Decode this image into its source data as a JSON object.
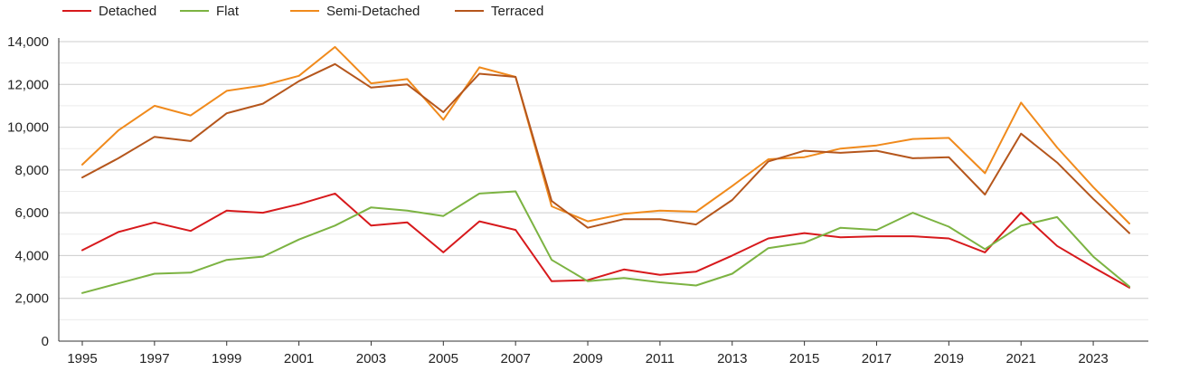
{
  "chart_data": {
    "type": "line",
    "title": "",
    "xlabel": "",
    "ylabel": "",
    "x": [
      1995,
      1996,
      1997,
      1998,
      1999,
      2000,
      2001,
      2002,
      2003,
      2004,
      2005,
      2006,
      2007,
      2008,
      2009,
      2010,
      2011,
      2012,
      2013,
      2014,
      2015,
      2016,
      2017,
      2018,
      2019,
      2020,
      2021,
      2022,
      2023,
      2024
    ],
    "xticks": [
      "1995",
      "1997",
      "1999",
      "2001",
      "2003",
      "2005",
      "2007",
      "2009",
      "2011",
      "2013",
      "2015",
      "2017",
      "2019",
      "2021",
      "2023"
    ],
    "xlim": [
      1995,
      2024
    ],
    "ylim": [
      0,
      14000
    ],
    "yticks": [
      "0",
      "2,000",
      "4,000",
      "6,000",
      "8,000",
      "10,000",
      "12,000",
      "14,000"
    ],
    "grid": true,
    "legend_position": "top-left",
    "series": [
      {
        "name": "Detached",
        "color": "#d7191c",
        "values": [
          4250,
          5100,
          5550,
          5150,
          6100,
          6000,
          6400,
          6900,
          5400,
          5550,
          4150,
          5600,
          5200,
          2800,
          2850,
          3350,
          3100,
          3250,
          4000,
          4800,
          5050,
          4850,
          4900,
          4900,
          4800,
          4150,
          6000,
          4450,
          3450,
          2500
        ]
      },
      {
        "name": "Flat",
        "color": "#7cb342",
        "values": [
          2250,
          2700,
          3150,
          3200,
          3800,
          3950,
          4750,
          5400,
          6250,
          6100,
          5850,
          6900,
          7000,
          3800,
          2800,
          2950,
          2750,
          2600,
          3150,
          4350,
          4600,
          5300,
          5200,
          6000,
          5350,
          4300,
          5400,
          5800,
          3950,
          2550
        ]
      },
      {
        "name": "Semi-Detached",
        "color": "#f08a1c",
        "values": [
          8250,
          9850,
          11000,
          10550,
          11700,
          11950,
          12400,
          13750,
          12050,
          12250,
          10350,
          12800,
          12350,
          6300,
          5600,
          5950,
          6100,
          6050,
          7250,
          8500,
          8600,
          9000,
          9150,
          9450,
          9500,
          7850,
          11150,
          9050,
          7200,
          5500
        ]
      },
      {
        "name": "Terraced",
        "color": "#b5561c",
        "values": [
          7650,
          8550,
          9550,
          9350,
          10650,
          11100,
          12150,
          12950,
          11850,
          12000,
          10700,
          12500,
          12350,
          6550,
          5300,
          5700,
          5700,
          5450,
          6600,
          8400,
          8900,
          8800,
          8900,
          8550,
          8600,
          6850,
          9700,
          8350,
          6650,
          5050
        ]
      }
    ]
  }
}
